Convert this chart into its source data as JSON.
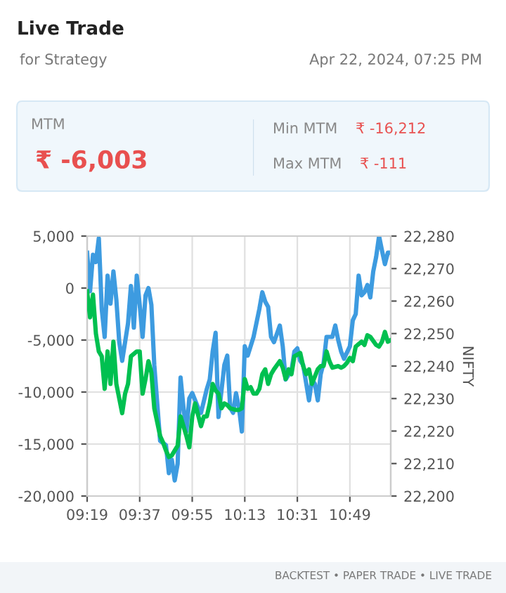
{
  "chart_data": {
    "type": "line",
    "title": "Live Trade",
    "subtitle": "for Strategy",
    "annotations": [
      "Apr 22, 2024, 07:25 PM",
      "MTM",
      "₹ -6,003",
      "Min MTM",
      "₹ -16,212",
      "Max MTM",
      "₹ -111",
      "BACKTEST • PAPER TRADE • LIVE TRADE"
    ],
    "y2label": "NIFTY",
    "series": [
      {
        "color": "#3d9be0",
        "axis": "y",
        "x": [
          "2024-04-22T09:19",
          "2024-04-22T09:20",
          "2024-04-22T09:21",
          "2024-04-22T09:22",
          "2024-04-22T09:23",
          "2024-04-22T09:24",
          "2024-04-22T09:25",
          "2024-04-22T09:26",
          "2024-04-22T09:27",
          "2024-04-22T09:28",
          "2024-04-22T09:29",
          "2024-04-22T09:30",
          "2024-04-22T09:31",
          "2024-04-22T09:33",
          "2024-04-22T09:34",
          "2024-04-22T09:35",
          "2024-04-22T09:36",
          "2024-04-22T09:37",
          "2024-04-22T09:38",
          "2024-04-22T09:39",
          "2024-04-22T09:40",
          "2024-04-22T09:41",
          "2024-04-22T09:42",
          "2024-04-22T09:44",
          "2024-04-22T09:46",
          "2024-04-22T09:47",
          "2024-04-22T09:48",
          "2024-04-22T09:49",
          "2024-04-22T09:50",
          "2024-04-22T09:51",
          "2024-04-22T09:52",
          "2024-04-22T09:53",
          "2024-04-22T09:54",
          "2024-04-22T09:55",
          "2024-04-22T09:57",
          "2024-04-22T09:58",
          "2024-04-22T10:00",
          "2024-04-22T10:01",
          "2024-04-22T10:02",
          "2024-04-22T10:03",
          "2024-04-22T10:04",
          "2024-04-22T10:06",
          "2024-04-22T10:07",
          "2024-04-22T10:08",
          "2024-04-22T10:09",
          "2024-04-22T10:10",
          "2024-04-22T10:11",
          "2024-04-22T10:12",
          "2024-04-22T10:13",
          "2024-04-22T10:14",
          "2024-04-22T10:15",
          "2024-04-22T10:16",
          "2024-04-22T10:18",
          "2024-04-22T10:19",
          "2024-04-22T10:20",
          "2024-04-22T10:21",
          "2024-04-22T10:22",
          "2024-04-22T10:23",
          "2024-04-22T10:25",
          "2024-04-22T10:26",
          "2024-04-22T10:27",
          "2024-04-22T10:29",
          "2024-04-22T10:30",
          "2024-04-22T10:31",
          "2024-04-22T10:32",
          "2024-04-22T10:33",
          "2024-04-22T10:35",
          "2024-04-22T10:36",
          "2024-04-22T10:37",
          "2024-04-22T10:38",
          "2024-04-22T10:39",
          "2024-04-22T10:40",
          "2024-04-22T10:41",
          "2024-04-22T10:43",
          "2024-04-22T10:44",
          "2024-04-22T10:45",
          "2024-04-22T10:46",
          "2024-04-22T10:47",
          "2024-04-22T10:49",
          "2024-04-22T10:50",
          "2024-04-22T10:51",
          "2024-04-22T10:52",
          "2024-04-22T10:53",
          "2024-04-22T10:54",
          "2024-04-22T10:55",
          "2024-04-22T10:56",
          "2024-04-22T10:57",
          "2024-04-22T10:58",
          "2024-04-22T10:59",
          "2024-04-22T11:00",
          "2024-04-22T11:01",
          "2024-04-22T11:02",
          "2024-04-22T11:03"
        ],
        "values": [
          3400,
          -300,
          3200,
          2500,
          4800,
          -2000,
          -4700,
          1200,
          -1500,
          1600,
          -1100,
          -5200,
          -7000,
          -3400,
          200,
          -3800,
          1200,
          -1600,
          -4700,
          -700,
          0,
          -1600,
          -7400,
          -14700,
          -15100,
          -17800,
          -16500,
          -18500,
          -16900,
          -8600,
          -11500,
          -13800,
          -10600,
          -10100,
          -11500,
          -12000,
          -9700,
          -8800,
          -6100,
          -4300,
          -12400,
          -7400,
          -6500,
          -11500,
          -12000,
          -10100,
          -11500,
          -13800,
          -5600,
          -6500,
          -5600,
          -4700,
          -2000,
          -400,
          -1300,
          -1800,
          -4700,
          -5200,
          -3600,
          -5600,
          -8800,
          -7900,
          -6100,
          -5800,
          -7000,
          -7400,
          -10800,
          -8800,
          -9200,
          -10800,
          -8300,
          -7200,
          -4700,
          -4700,
          -3600,
          -5000,
          -6100,
          -6800,
          -5600,
          -3100,
          -2500,
          1200,
          -700,
          -400,
          300,
          -900,
          1600,
          3000,
          5000,
          3600,
          2300,
          3400,
          3400
        ]
      },
      {
        "color": "#00c050",
        "axis": "y2",
        "x": [
          "2024-04-22T09:19",
          "2024-04-22T09:20",
          "2024-04-22T09:21",
          "2024-04-22T09:22",
          "2024-04-22T09:23",
          "2024-04-22T09:24",
          "2024-04-22T09:25",
          "2024-04-22T09:26",
          "2024-04-22T09:27",
          "2024-04-22T09:28",
          "2024-04-22T09:29",
          "2024-04-22T09:30",
          "2024-04-22T09:31",
          "2024-04-22T09:32",
          "2024-04-22T09:33",
          "2024-04-22T09:34",
          "2024-04-22T09:36",
          "2024-04-22T09:37",
          "2024-04-22T09:38",
          "2024-04-22T09:39",
          "2024-04-22T09:40",
          "2024-04-22T09:41",
          "2024-04-22T09:42",
          "2024-04-22T09:44",
          "2024-04-22T09:45",
          "2024-04-22T09:46",
          "2024-04-22T09:47",
          "2024-04-22T09:48",
          "2024-04-22T09:50",
          "2024-04-22T09:51",
          "2024-04-22T09:52",
          "2024-04-22T09:53",
          "2024-04-22T09:54",
          "2024-04-22T09:55",
          "2024-04-22T09:56",
          "2024-04-22T09:58",
          "2024-04-22T09:59",
          "2024-04-22T10:00",
          "2024-04-22T10:01",
          "2024-04-22T10:02",
          "2024-04-22T10:03",
          "2024-04-22T10:04",
          "2024-04-22T10:05",
          "2024-04-22T10:06",
          "2024-04-22T10:07",
          "2024-04-22T10:08",
          "2024-04-22T10:10",
          "2024-04-22T10:11",
          "2024-04-22T10:12",
          "2024-04-22T10:13",
          "2024-04-22T10:14",
          "2024-04-22T10:15",
          "2024-04-22T10:16",
          "2024-04-22T10:17",
          "2024-04-22T10:18",
          "2024-04-22T10:19",
          "2024-04-22T10:20",
          "2024-04-22T10:21",
          "2024-04-22T10:22",
          "2024-04-22T10:23",
          "2024-04-22T10:25",
          "2024-04-22T10:26",
          "2024-04-22T10:27",
          "2024-04-22T10:28",
          "2024-04-22T10:29",
          "2024-04-22T10:30",
          "2024-04-22T10:32",
          "2024-04-22T10:33",
          "2024-04-22T10:34",
          "2024-04-22T10:35",
          "2024-04-22T10:36",
          "2024-04-22T10:38",
          "2024-04-22T10:39",
          "2024-04-22T10:40",
          "2024-04-22T10:41",
          "2024-04-22T10:42",
          "2024-04-22T10:43",
          "2024-04-22T10:45",
          "2024-04-22T10:46",
          "2024-04-22T10:47",
          "2024-04-22T10:48",
          "2024-04-22T10:49",
          "2024-04-22T10:50",
          "2024-04-22T10:51",
          "2024-04-22T10:53",
          "2024-04-22T10:54",
          "2024-04-22T10:55",
          "2024-04-22T10:56",
          "2024-04-22T10:58",
          "2024-04-22T10:59",
          "2024-04-22T11:00",
          "2024-04-22T11:01",
          "2024-04-22T11:02",
          "2024-04-22T11:03"
        ],
        "values": [
          22263,
          22255,
          22262,
          22250,
          22244.5,
          22243,
          22233,
          22244.5,
          22234.5,
          22247.5,
          22234.5,
          22230,
          22225.5,
          22231.5,
          22234.5,
          22243,
          22244.5,
          22244.5,
          22231.5,
          22236,
          22241.5,
          22238,
          22227,
          22218.5,
          22216.5,
          22214,
          22212,
          22212.5,
          22215.5,
          22224.5,
          22221.5,
          22218.5,
          22215,
          22224.5,
          22228.5,
          22221.5,
          22224.5,
          22224.5,
          22228.5,
          22234.5,
          22232.5,
          22231.5,
          22227,
          22228.5,
          22228,
          22227,
          22226.5,
          22226.5,
          22227,
          22236,
          22233,
          22233.5,
          22231.5,
          22231.5,
          22233,
          22237.5,
          22239,
          22234.5,
          22237.5,
          22239,
          22241.5,
          22239.5,
          22236,
          22239,
          22237.5,
          22243,
          22244,
          22240,
          22237.5,
          22239,
          22234.5,
          22239,
          22240,
          22240,
          22244.5,
          22241.5,
          22239.5,
          22240,
          22239.5,
          22240,
          22241,
          22242.5,
          22241.5,
          22246,
          22247.5,
          22246.5,
          22249.5,
          22249,
          22246.5,
          22246,
          22247.5,
          22250.5,
          22247.5,
          22248
        ]
      }
    ],
    "xlim": [
      "2024-04-22T09:19",
      "2024-04-22T11:03"
    ],
    "xticks": [
      {
        "value": "2024-04-22T09:19",
        "label": "09:19"
      },
      {
        "value": "2024-04-22T09:37",
        "label": "09:37"
      },
      {
        "value": "2024-04-22T09:55",
        "label": "09:55"
      },
      {
        "value": "2024-04-22T10:13",
        "label": "10:13"
      },
      {
        "value": "2024-04-22T10:31",
        "label": "10:31"
      },
      {
        "value": "2024-04-22T10:49",
        "label": "10:49"
      }
    ],
    "ylim": [
      -20000,
      5000
    ],
    "yticks": [
      {
        "value": -20000,
        "label": "-20,000"
      },
      {
        "value": -15000,
        "label": "-15,000"
      },
      {
        "value": -10000,
        "label": "-10,000"
      },
      {
        "value": -5000,
        "label": "-5,000"
      },
      0,
      {
        "value": 5000,
        "label": "5,000"
      }
    ],
    "y2lim": [
      22200,
      22280
    ],
    "y2ticks": [
      {
        "value": 22200,
        "label": "22,200"
      },
      {
        "value": 22210,
        "label": "22,210"
      },
      {
        "value": 22220,
        "label": "22,220"
      },
      {
        "value": 22230,
        "label": "22,230"
      },
      {
        "value": 22240,
        "label": "22,240"
      },
      {
        "value": 22250,
        "label": "22,250"
      },
      {
        "value": 22260,
        "label": "22,260"
      },
      {
        "value": 22270,
        "label": "22,270"
      },
      {
        "value": 22280,
        "label": "22,280"
      }
    ],
    "grid": true,
    "line_style": "solid",
    "marker": "none"
  }
}
